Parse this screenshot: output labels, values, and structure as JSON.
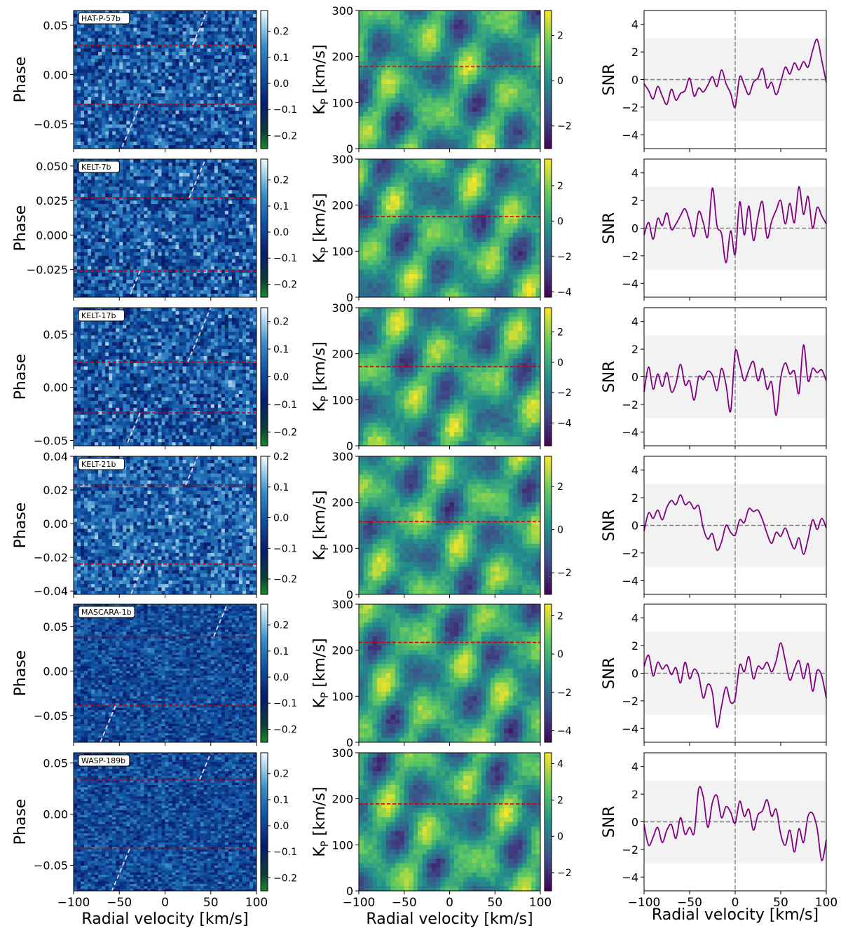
{
  "figure": {
    "x_label": "Radial velocity [km/s]",
    "x_range": [
      -100,
      100
    ],
    "x_ticks": [
      -100,
      -50,
      0,
      50,
      100
    ],
    "x_tick_labels": [
      "−100",
      "−50",
      "0",
      "50",
      "100"
    ],
    "col1_ylabel": "Phase",
    "col2_ylabel": "K",
    "col2_ylabel_sub": "P",
    "col2_ylabel_rest": " [km/s]",
    "col3_ylabel": "SNR",
    "colors": {
      "line": "#800080",
      "band": "#f2f2f2",
      "dashed_red": "#cc0000",
      "dashed_grey": "#808080",
      "trail": "#f0d6ec"
    }
  },
  "chart_data": [
    {
      "type": "heatmap",
      "planet": "HAT-P-57b",
      "row": 0,
      "phase": {
        "ylim": [
          -0.075,
          0.065
        ],
        "yticks": [
          0.05,
          0.0,
          -0.05
        ],
        "ytick_labels": [
          "0.05",
          "0.00",
          "−0.05"
        ],
        "transit_phases": [
          0.03,
          -0.03
        ],
        "cbar_ticks": [
          0.2,
          0.1,
          0.0,
          -0.1,
          -0.2
        ],
        "cbar_tick_labels": [
          "0.2",
          "0.1",
          "0.0",
          "−0.1",
          "−0.2"
        ],
        "cbar_range": [
          -0.25,
          0.28
        ]
      },
      "kp": {
        "ylim": [
          0,
          300
        ],
        "yticks": [
          0,
          100,
          200,
          300
        ],
        "ytick_labels": [
          "0",
          "100",
          "200",
          "300"
        ],
        "kp_line": 178,
        "cbar_ticks": [
          2,
          0,
          -2
        ],
        "cbar_tick_labels": [
          "2",
          "0",
          "−2"
        ],
        "cbar_range": [
          -3.0,
          3.1
        ]
      },
      "snr": {
        "ylim": [
          -5,
          5
        ],
        "yticks": [
          4,
          2,
          0,
          -2,
          -4
        ],
        "ytick_labels": [
          "4",
          "2",
          "0",
          "−2",
          "−4"
        ],
        "band": [
          -3,
          3
        ],
        "x": [
          -100,
          -95,
          -90,
          -85,
          -80,
          -75,
          -70,
          -65,
          -60,
          -55,
          -50,
          -45,
          -40,
          -35,
          -30,
          -25,
          -20,
          -15,
          -10,
          -5,
          0,
          5,
          10,
          15,
          20,
          25,
          30,
          35,
          40,
          45,
          50,
          55,
          60,
          65,
          70,
          75,
          80,
          85,
          90,
          95,
          100
        ],
        "y": [
          -0.3,
          -0.8,
          -1.4,
          -0.5,
          -1.2,
          -1.8,
          -0.7,
          -1.5,
          -1.0,
          -0.8,
          0.1,
          -1.2,
          -0.6,
          -0.9,
          -0.4,
          0.2,
          -0.5,
          0.7,
          -0.3,
          -1.0,
          -2.0,
          0.2,
          -0.4,
          -1.1,
          -0.2,
          0.1,
          0.8,
          -0.6,
          -0.2,
          -1.1,
          -0.2,
          0.9,
          0.4,
          1.2,
          0.7,
          1.3,
          0.9,
          2.1,
          2.9,
          1.4,
          -0.2
        ]
      }
    },
    {
      "type": "heatmap",
      "planet": "KELT-7b",
      "row": 1,
      "phase": {
        "ylim": [
          -0.045,
          0.055
        ],
        "yticks": [
          0.05,
          0.025,
          0.0,
          -0.025
        ],
        "ytick_labels": [
          "0.050",
          "0.025",
          "0.000",
          "−0.025"
        ],
        "transit_phases": [
          0.027,
          -0.026
        ],
        "cbar_ticks": [
          0.2,
          0.1,
          0.0,
          -0.1,
          -0.2
        ],
        "cbar_tick_labels": [
          "0.2",
          "0.1",
          "0.0",
          "−0.1",
          "−0.2"
        ],
        "cbar_range": [
          -0.25,
          0.28
        ]
      },
      "kp": {
        "ylim": [
          0,
          300
        ],
        "yticks": [
          0,
          100,
          200,
          300
        ],
        "ytick_labels": [
          "0",
          "100",
          "200",
          "300"
        ],
        "kp_line": 175,
        "cbar_ticks": [
          2,
          0,
          -2,
          -4
        ],
        "cbar_tick_labels": [
          "2",
          "0",
          "−2",
          "−4"
        ],
        "cbar_range": [
          -4.3,
          3.5
        ]
      },
      "snr": {
        "ylim": [
          -5,
          5
        ],
        "yticks": [
          4,
          2,
          0,
          -2,
          -4
        ],
        "ytick_labels": [
          "4",
          "2",
          "0",
          "−2",
          "−4"
        ],
        "band": [
          -3,
          3
        ],
        "x": [
          -100,
          -95,
          -90,
          -85,
          -80,
          -75,
          -70,
          -65,
          -60,
          -55,
          -50,
          -45,
          -40,
          -35,
          -30,
          -25,
          -20,
          -15,
          -10,
          -5,
          0,
          5,
          10,
          15,
          20,
          25,
          30,
          35,
          40,
          45,
          50,
          55,
          60,
          65,
          70,
          75,
          80,
          85,
          90,
          95,
          100
        ],
        "y": [
          -0.5,
          0.4,
          -0.8,
          0.7,
          0.2,
          1.1,
          -0.1,
          0.3,
          0.9,
          1.4,
          0.5,
          -0.6,
          1.2,
          0.4,
          -0.6,
          2.9,
          0.2,
          -0.4,
          -2.5,
          -0.2,
          -1.9,
          1.9,
          -0.5,
          1.6,
          -0.9,
          0.8,
          1.9,
          -0.7,
          0.5,
          1.3,
          2.0,
          0.3,
          1.8,
          0.4,
          3.0,
          1.0,
          2.3,
          0.0,
          1.5,
          0.9,
          0.3
        ]
      }
    },
    {
      "type": "heatmap",
      "planet": "KELT-17b",
      "row": 2,
      "phase": {
        "ylim": [
          -0.055,
          0.075
        ],
        "yticks": [
          0.05,
          0.0,
          -0.05
        ],
        "ytick_labels": [
          "0.05",
          "0.00",
          "−0.05"
        ],
        "transit_phases": [
          0.024,
          -0.024
        ],
        "cbar_ticks": [
          0.2,
          0.1,
          0.0,
          -0.1,
          -0.2
        ],
        "cbar_tick_labels": [
          "0.2",
          "0.1",
          "0.0",
          "−0.1",
          "−0.2"
        ],
        "cbar_range": [
          -0.25,
          0.25
        ]
      },
      "kp": {
        "ylim": [
          0,
          300
        ],
        "yticks": [
          0,
          100,
          200,
          300
        ],
        "ytick_labels": [
          "0",
          "100",
          "200",
          "300"
        ],
        "kp_line": 172,
        "cbar_ticks": [
          2,
          0,
          -2,
          -4
        ],
        "cbar_tick_labels": [
          "2",
          "0",
          "−2",
          "−4"
        ],
        "cbar_range": [
          -5.5,
          3.6
        ]
      },
      "snr": {
        "ylim": [
          -5,
          5
        ],
        "yticks": [
          4,
          2,
          0,
          -2,
          -4
        ],
        "ytick_labels": [
          "4",
          "2",
          "0",
          "−2",
          "−4"
        ],
        "band": [
          -3,
          3
        ],
        "x": [
          -100,
          -95,
          -90,
          -85,
          -80,
          -75,
          -70,
          -65,
          -60,
          -55,
          -50,
          -45,
          -40,
          -35,
          -30,
          -25,
          -20,
          -15,
          -10,
          -5,
          0,
          5,
          10,
          15,
          20,
          25,
          30,
          35,
          40,
          45,
          50,
          55,
          60,
          65,
          70,
          75,
          80,
          85,
          90,
          95,
          100
        ],
        "y": [
          -1.1,
          0.7,
          -0.9,
          0.2,
          -0.7,
          0.3,
          -1.1,
          -0.5,
          0.9,
          -0.6,
          -0.3,
          -1.7,
          0.0,
          -0.2,
          0.4,
          0.1,
          -1.0,
          0.6,
          -0.6,
          -2.5,
          1.8,
          0.9,
          -0.3,
          0.5,
          1.1,
          -0.3,
          0.6,
          -0.9,
          -0.4,
          -2.8,
          -0.1,
          1.0,
          0.2,
          0.4,
          -1.2,
          2.3,
          -0.3,
          0.6,
          0.3,
          0.5,
          -0.3
        ]
      }
    },
    {
      "type": "heatmap",
      "planet": "KELT-21b",
      "row": 3,
      "phase": {
        "ylim": [
          -0.042,
          0.04
        ],
        "yticks": [
          0.04,
          0.02,
          0.0,
          -0.02,
          -0.04
        ],
        "ytick_labels": [
          "0.04",
          "0.02",
          "0.00",
          "−0.02",
          "−0.04"
        ],
        "transit_phases": [
          0.023,
          -0.024
        ],
        "cbar_ticks": [
          0.2,
          0.1,
          0.0,
          -0.1,
          -0.2
        ],
        "cbar_tick_labels": [
          "0.2",
          "0.1",
          "0.0",
          "−0.1",
          "−0.2"
        ],
        "cbar_range": [
          -0.25,
          0.2
        ]
      },
      "kp": {
        "ylim": [
          0,
          300
        ],
        "yticks": [
          0,
          100,
          200,
          300
        ],
        "ytick_labels": [
          "0",
          "100",
          "200",
          "300"
        ],
        "kp_line": 158,
        "cbar_ticks": [
          2,
          0,
          -2
        ],
        "cbar_tick_labels": [
          "2",
          "0",
          "−2"
        ],
        "cbar_range": [
          -3.0,
          3.4
        ]
      },
      "snr": {
        "ylim": [
          -5,
          5
        ],
        "yticks": [
          4,
          2,
          0,
          -2,
          -4
        ],
        "ytick_labels": [
          "4",
          "2",
          "0",
          "−2",
          "−4"
        ],
        "band": [
          -3,
          3
        ],
        "x": [
          -100,
          -95,
          -90,
          -85,
          -80,
          -75,
          -70,
          -65,
          -60,
          -55,
          -50,
          -45,
          -40,
          -35,
          -30,
          -25,
          -20,
          -15,
          -10,
          -5,
          0,
          5,
          10,
          15,
          20,
          25,
          30,
          35,
          40,
          45,
          50,
          55,
          60,
          65,
          70,
          75,
          80,
          85,
          90,
          95,
          100
        ],
        "y": [
          -0.4,
          0.9,
          0.5,
          1.1,
          0.4,
          1.3,
          1.8,
          1.5,
          2.2,
          1.5,
          1.7,
          1.2,
          1.4,
          -0.2,
          -1.0,
          -0.6,
          -1.8,
          -1.2,
          0.0,
          -0.5,
          -0.7,
          0.4,
          0.2,
          1.2,
          1.0,
          1.1,
          0.4,
          -0.6,
          -1.3,
          -0.5,
          -0.8,
          -0.2,
          -1.0,
          -1.7,
          -0.9,
          -2.1,
          -1.0,
          0.4,
          -0.3,
          0.5,
          -0.2
        ]
      }
    },
    {
      "type": "heatmap",
      "planet": "MASCARA-1b",
      "row": 4,
      "phase": {
        "ylim": [
          -0.08,
          0.075
        ],
        "yticks": [
          0.05,
          0.0,
          -0.05
        ],
        "ytick_labels": [
          "0.05",
          "0.00",
          "−0.05"
        ],
        "transit_phases": [
          0.039,
          -0.039
        ],
        "cbar_ticks": [
          0.2,
          0.1,
          0.0,
          -0.1,
          -0.2
        ],
        "cbar_tick_labels": [
          "0.2",
          "0.1",
          "0.0",
          "−0.1",
          "−0.2"
        ],
        "cbar_range": [
          -0.25,
          0.28
        ]
      },
      "kp": {
        "ylim": [
          0,
          300
        ],
        "yticks": [
          0,
          100,
          200,
          300
        ],
        "ytick_labels": [
          "0",
          "100",
          "200",
          "300"
        ],
        "kp_line": 217,
        "cbar_ticks": [
          2,
          0,
          -2,
          -4
        ],
        "cbar_tick_labels": [
          "2",
          "0",
          "−2",
          "−4"
        ],
        "cbar_range": [
          -4.6,
          2.6
        ]
      },
      "snr": {
        "ylim": [
          -5,
          5
        ],
        "yticks": [
          4,
          2,
          0,
          -2,
          -4
        ],
        "ytick_labels": [
          "4",
          "2",
          "0",
          "−2",
          "−4"
        ],
        "band": [
          -3,
          3
        ],
        "x": [
          -100,
          -95,
          -90,
          -85,
          -80,
          -75,
          -70,
          -65,
          -60,
          -55,
          -50,
          -45,
          -40,
          -35,
          -30,
          -25,
          -20,
          -15,
          -10,
          -5,
          0,
          5,
          10,
          15,
          20,
          25,
          30,
          35,
          40,
          45,
          50,
          55,
          60,
          65,
          70,
          75,
          80,
          85,
          90,
          95,
          100
        ],
        "y": [
          0.5,
          1.3,
          -0.2,
          0.8,
          0.3,
          0.6,
          -0.1,
          0.4,
          -0.7,
          0.8,
          -0.4,
          0.3,
          -0.2,
          -1.8,
          -0.8,
          -1.4,
          -3.9,
          -2.4,
          -1.0,
          -2.1,
          -1.8,
          0.6,
          0.1,
          1.2,
          -0.4,
          0.5,
          0.3,
          0.8,
          0.1,
          0.9,
          2.2,
          0.9,
          -0.5,
          0.3,
          0.9,
          -0.4,
          0.7,
          -1.3,
          0.2,
          -0.2,
          -1.8
        ]
      }
    },
    {
      "type": "heatmap",
      "planet": "WASP-189b",
      "row": 5,
      "phase": {
        "ylim": [
          -0.075,
          0.06
        ],
        "yticks": [
          0.05,
          0.0,
          -0.05
        ],
        "ytick_labels": [
          "0.05",
          "0.00",
          "−0.05"
        ],
        "transit_phases": [
          0.034,
          -0.034
        ],
        "cbar_ticks": [
          0.2,
          0.1,
          0.0,
          -0.1,
          -0.2
        ],
        "cbar_tick_labels": [
          "0.2",
          "0.1",
          "0.0",
          "−0.1",
          "−0.2"
        ],
        "cbar_range": [
          -0.25,
          0.28
        ]
      },
      "kp": {
        "ylim": [
          0,
          300
        ],
        "yticks": [
          0,
          100,
          200,
          300
        ],
        "ytick_labels": [
          "0",
          "100",
          "200",
          "300"
        ],
        "kp_line": 189,
        "cbar_ticks": [
          4,
          2,
          0,
          -2
        ],
        "cbar_tick_labels": [
          "4",
          "2",
          "0",
          "−2"
        ],
        "cbar_range": [
          -3.0,
          4.6
        ]
      },
      "snr": {
        "ylim": [
          -5,
          5
        ],
        "yticks": [
          4,
          2,
          0,
          -2,
          -4
        ],
        "ytick_labels": [
          "4",
          "2",
          "0",
          "−2",
          "−4"
        ],
        "band": [
          -3,
          3
        ],
        "x": [
          -100,
          -95,
          -90,
          -85,
          -80,
          -75,
          -70,
          -65,
          -60,
          -55,
          -50,
          -45,
          -40,
          -35,
          -30,
          -25,
          -20,
          -15,
          -10,
          -5,
          0,
          5,
          10,
          15,
          20,
          25,
          30,
          35,
          40,
          45,
          50,
          55,
          60,
          65,
          70,
          75,
          80,
          85,
          90,
          95,
          100
        ],
        "y": [
          -0.2,
          -1.7,
          -1.1,
          -0.4,
          -1.5,
          -0.6,
          -0.2,
          -1.2,
          0.3,
          -0.9,
          -0.4,
          -0.8,
          2.4,
          1.8,
          -0.4,
          1.4,
          1.9,
          0.3,
          1.1,
          0.7,
          -0.1,
          1.5,
          0.4,
          0.9,
          -0.6,
          0.5,
          0.8,
          1.6,
          0.4,
          0.9,
          -0.9,
          -1.7,
          -0.6,
          -2.2,
          -0.5,
          -1.5,
          0.4,
          0.6,
          -0.5,
          -2.8,
          -1.3
        ]
      }
    }
  ]
}
